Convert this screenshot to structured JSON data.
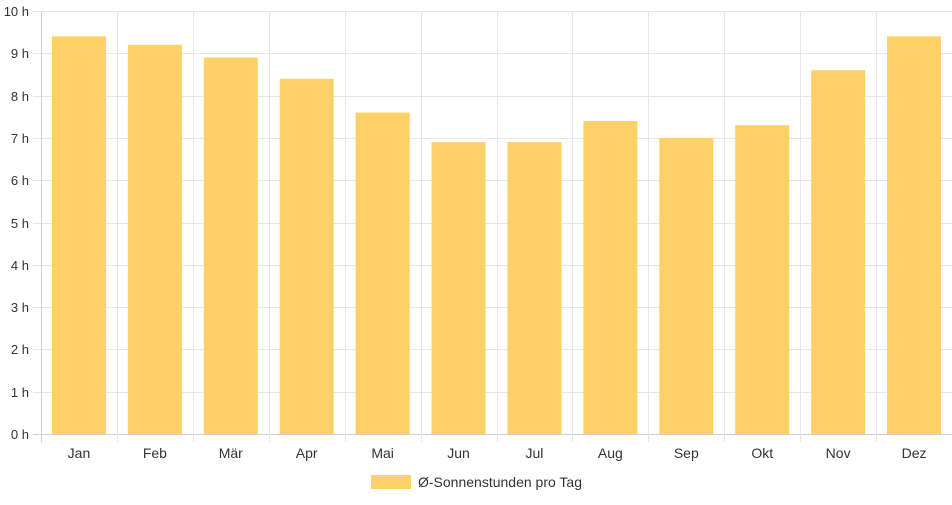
{
  "chart_data": {
    "type": "bar",
    "categories": [
      "Jan",
      "Feb",
      "Mär",
      "Apr",
      "Mai",
      "Jun",
      "Jul",
      "Aug",
      "Sep",
      "Okt",
      "Nov",
      "Dez"
    ],
    "series": [
      {
        "name": "Ø-Sonnenstunden pro Tag",
        "values": [
          9.4,
          9.2,
          8.9,
          8.4,
          7.6,
          6.9,
          6.9,
          7.4,
          7.0,
          7.3,
          8.6,
          9.4
        ],
        "color": "#fdd167"
      }
    ],
    "ylim": [
      0,
      10
    ],
    "yticks": [
      "0 h",
      "1 h",
      "2 h",
      "3 h",
      "4 h",
      "5 h",
      "6 h",
      "7 h",
      "8 h",
      "9 h",
      "10 h"
    ],
    "grid": true,
    "legend_position": "bottom"
  }
}
